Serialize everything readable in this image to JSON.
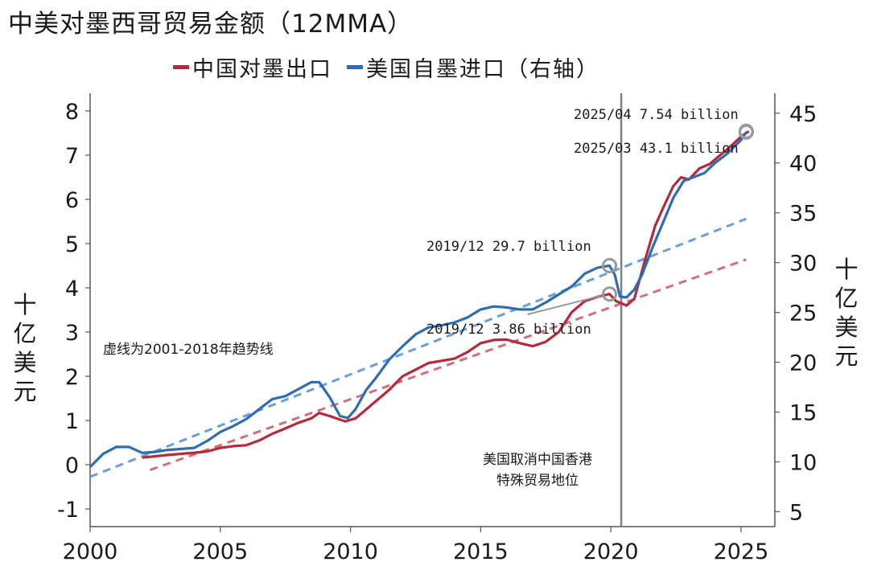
{
  "title": "中美对墨西哥贸易金额（12MMA）",
  "legend": {
    "china": "中国对墨出口",
    "us": "美国自墨进口（右轴）"
  },
  "colors": {
    "china": "#b52a3a",
    "us": "#2e6db4",
    "china_trend": "#d0707c",
    "us_trend": "#6a9fd8",
    "vline": "#808080",
    "marker": "#999999"
  },
  "chart_data": {
    "type": "line",
    "x_ticks": [
      "2000",
      "2005",
      "2010",
      "2015",
      "2020",
      "2025"
    ],
    "x_range": [
      2000,
      2026.3
    ],
    "y_left": {
      "label": "十亿美元",
      "range": [
        -1.4,
        8.4
      ],
      "ticks": [
        "-1",
        "0",
        "1",
        "2",
        "3",
        "4",
        "5",
        "6",
        "7",
        "8"
      ]
    },
    "y_right": {
      "label": "十亿美元",
      "range": [
        3.5,
        47
      ],
      "ticks": [
        "5",
        "10",
        "15",
        "20",
        "25",
        "30",
        "35",
        "40",
        "45"
      ]
    },
    "series": [
      {
        "name": "中国对墨出口",
        "axis": "left",
        "points": [
          [
            2002.0,
            0.16
          ],
          [
            2003.0,
            0.22
          ],
          [
            2004.0,
            0.27
          ],
          [
            2004.5,
            0.3
          ],
          [
            2005.0,
            0.38
          ],
          [
            2005.5,
            0.42
          ],
          [
            2006.0,
            0.44
          ],
          [
            2006.5,
            0.55
          ],
          [
            2007.0,
            0.7
          ],
          [
            2007.5,
            0.82
          ],
          [
            2008.0,
            0.95
          ],
          [
            2008.5,
            1.05
          ],
          [
            2008.8,
            1.17
          ],
          [
            2009.2,
            1.1
          ],
          [
            2009.8,
            0.98
          ],
          [
            2010.2,
            1.05
          ],
          [
            2010.6,
            1.25
          ],
          [
            2011.0,
            1.45
          ],
          [
            2011.5,
            1.7
          ],
          [
            2012.0,
            2.0
          ],
          [
            2012.5,
            2.15
          ],
          [
            2013.0,
            2.3
          ],
          [
            2013.5,
            2.35
          ],
          [
            2014.0,
            2.4
          ],
          [
            2014.5,
            2.55
          ],
          [
            2015.0,
            2.75
          ],
          [
            2015.5,
            2.82
          ],
          [
            2016.0,
            2.83
          ],
          [
            2016.5,
            2.75
          ],
          [
            2017.0,
            2.68
          ],
          [
            2017.5,
            2.78
          ],
          [
            2018.0,
            3.0
          ],
          [
            2018.5,
            3.45
          ],
          [
            2019.0,
            3.7
          ],
          [
            2019.5,
            3.8
          ],
          [
            2019.95,
            3.86
          ],
          [
            2020.2,
            3.7
          ],
          [
            2020.6,
            3.6
          ],
          [
            2020.9,
            3.75
          ],
          [
            2021.3,
            4.6
          ],
          [
            2021.7,
            5.4
          ],
          [
            2022.0,
            5.8
          ],
          [
            2022.4,
            6.3
          ],
          [
            2022.7,
            6.5
          ],
          [
            2023.0,
            6.45
          ],
          [
            2023.4,
            6.7
          ],
          [
            2023.8,
            6.8
          ],
          [
            2024.2,
            7.0
          ],
          [
            2024.6,
            7.2
          ],
          [
            2025.0,
            7.42
          ],
          [
            2025.3,
            7.54
          ]
        ]
      },
      {
        "name": "美国自墨进口（右轴）",
        "axis": "right",
        "points": [
          [
            2000.0,
            9.5
          ],
          [
            2000.5,
            10.8
          ],
          [
            2001.0,
            11.5
          ],
          [
            2001.5,
            11.5
          ],
          [
            2002.0,
            10.9
          ],
          [
            2002.5,
            11.0
          ],
          [
            2003.0,
            11.2
          ],
          [
            2003.5,
            11.3
          ],
          [
            2004.0,
            11.4
          ],
          [
            2004.5,
            12.1
          ],
          [
            2005.0,
            13.0
          ],
          [
            2005.5,
            13.6
          ],
          [
            2006.0,
            14.3
          ],
          [
            2006.5,
            15.3
          ],
          [
            2007.0,
            16.3
          ],
          [
            2007.5,
            16.6
          ],
          [
            2008.0,
            17.3
          ],
          [
            2008.5,
            18.0
          ],
          [
            2008.8,
            18.0
          ],
          [
            2009.2,
            16.5
          ],
          [
            2009.6,
            14.6
          ],
          [
            2009.9,
            14.4
          ],
          [
            2010.2,
            15.3
          ],
          [
            2010.6,
            17.2
          ],
          [
            2011.0,
            18.5
          ],
          [
            2011.5,
            20.3
          ],
          [
            2012.0,
            21.6
          ],
          [
            2012.5,
            22.8
          ],
          [
            2013.0,
            23.5
          ],
          [
            2013.5,
            23.7
          ],
          [
            2014.0,
            24.0
          ],
          [
            2014.5,
            24.5
          ],
          [
            2015.0,
            25.3
          ],
          [
            2015.5,
            25.6
          ],
          [
            2016.0,
            25.5
          ],
          [
            2016.5,
            25.3
          ],
          [
            2017.0,
            25.3
          ],
          [
            2017.5,
            26.0
          ],
          [
            2018.0,
            26.8
          ],
          [
            2018.5,
            27.6
          ],
          [
            2019.0,
            28.9
          ],
          [
            2019.5,
            29.5
          ],
          [
            2019.95,
            29.7
          ],
          [
            2020.15,
            28.8
          ],
          [
            2020.35,
            26.6
          ],
          [
            2020.6,
            26.5
          ],
          [
            2020.9,
            27.3
          ],
          [
            2021.2,
            28.8
          ],
          [
            2021.6,
            31.5
          ],
          [
            2022.0,
            34.0
          ],
          [
            2022.4,
            36.5
          ],
          [
            2022.8,
            38.2
          ],
          [
            2023.2,
            38.6
          ],
          [
            2023.6,
            39.0
          ],
          [
            2024.0,
            40.0
          ],
          [
            2024.5,
            41.0
          ],
          [
            2025.0,
            42.3
          ],
          [
            2025.2,
            43.1
          ]
        ]
      }
    ],
    "trend_lines": [
      {
        "series": "中国对墨出口",
        "axis": "left",
        "from": [
          2002.3,
          -0.12
        ],
        "to": [
          2025.2,
          4.64
        ]
      },
      {
        "series": "美国自墨进口（右轴）",
        "axis": "right",
        "from": [
          2000.0,
          8.5
        ],
        "to": [
          2025.2,
          34.4
        ]
      }
    ],
    "vertical_line": {
      "x": 2020.4,
      "label": [
        "美国取消中国香港",
        "特殊贸易地位"
      ]
    },
    "annotations": [
      {
        "text": "2025/04 7.54 billion",
        "x": 2025.2,
        "y": 7.54,
        "axis": "left"
      },
      {
        "text": "2025/03 43.1 billion",
        "x": 2025.2,
        "y": 43.1,
        "axis": "right"
      },
      {
        "text": "2019/12 29.7 billion",
        "x": 2019.95,
        "y": 29.7,
        "axis": "right"
      },
      {
        "text": "2019/12 3.86 billion",
        "x": 2019.95,
        "y": 3.86,
        "axis": "left"
      }
    ],
    "note": "虚线为2001-2018年趋势线"
  }
}
